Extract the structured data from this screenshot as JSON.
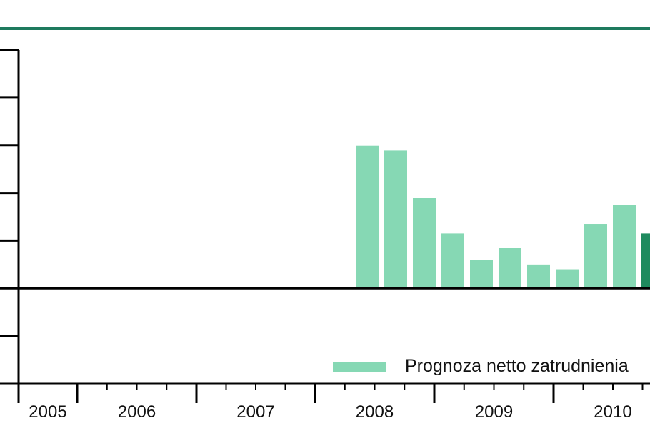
{
  "chart_data": {
    "type": "bar",
    "title": "",
    "xlabel": "",
    "ylabel": "",
    "ylim": [
      -2,
      5
    ],
    "year_labels": [
      "2005",
      "2006",
      "2007",
      "2008",
      "2009",
      "2010"
    ],
    "categories": [
      "2008 Q1",
      "2008 Q2",
      "2008 Q3",
      "2008 Q4",
      "2009 Q1",
      "2009 Q2",
      "2009 Q3",
      "2009 Q4",
      "2010 Q1",
      "2010 Q2",
      "2010 Q3"
    ],
    "series": [
      {
        "name": "Prognoza netto zatrudnienia",
        "values": [
          3.0,
          2.9,
          1.9,
          1.15,
          0.6,
          0.85,
          0.5,
          0.4,
          1.35,
          1.75,
          1.15
        ],
        "color": "#86d8b4",
        "highlight_color": "#1e8a5e",
        "highlight_index": 10
      }
    ],
    "legend_position": "bottom-right",
    "grid": false,
    "frame_top_color": "#1e7a5e"
  }
}
